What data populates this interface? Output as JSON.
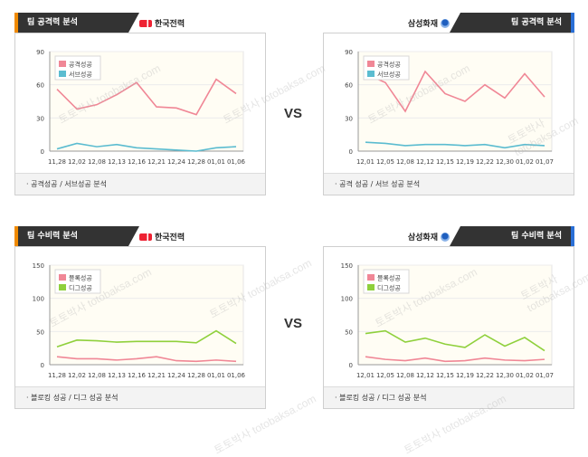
{
  "vs_label": "VS",
  "watermark": "토토박사 totobaksa.com",
  "colors": {
    "pink": "#f08796",
    "blue": "#5bbcd0",
    "green": "#8fd03c",
    "plot_bg": "#fffdf4"
  },
  "panels": [
    {
      "id": "p1",
      "side": "left",
      "tab": "팀 공격력 분석",
      "team": "한국전력",
      "logo": "kepco-logo",
      "footer": "· 공격성공 / 서브성공 분석",
      "chart_data": {
        "type": "line",
        "categories": [
          "11,28",
          "12,02",
          "12,08",
          "12,13",
          "12,16",
          "12,21",
          "12,24",
          "12,28",
          "01,01",
          "01,06"
        ],
        "ylim": [
          0,
          90
        ],
        "yticks": [
          0,
          30,
          60,
          90
        ],
        "series": [
          {
            "name": "공격성공",
            "color": "#f08796",
            "values": [
              56,
              38,
              42,
              51,
              62,
              40,
              39,
              33,
              65,
              52
            ]
          },
          {
            "name": "서브성공",
            "color": "#5bbcd0",
            "values": [
              2,
              7,
              4,
              6,
              3,
              2,
              1,
              0,
              3,
              4
            ]
          }
        ]
      }
    },
    {
      "id": "p2",
      "side": "right",
      "tab": "팀 공격력 분석",
      "team": "삼성화재",
      "logo": "samsung-logo",
      "footer": "· 공격 성공 / 서브 성공 분석",
      "chart_data": {
        "type": "line",
        "categories": [
          "12,01",
          "12,05",
          "12,08",
          "12,12",
          "12,15",
          "12,19",
          "12,22",
          "12,30",
          "01,02",
          "01,07"
        ],
        "ylim": [
          0,
          90
        ],
        "yticks": [
          0,
          30,
          60,
          90
        ],
        "series": [
          {
            "name": "공격성공",
            "color": "#f08796",
            "values": [
              70,
              62,
              36,
              72,
              52,
              45,
              60,
              48,
              70,
              49
            ]
          },
          {
            "name": "서브성공",
            "color": "#5bbcd0",
            "values": [
              8,
              7,
              5,
              6,
              6,
              5,
              6,
              3,
              6,
              5
            ]
          }
        ]
      }
    },
    {
      "id": "p3",
      "side": "left",
      "tab": "팀 수비력 분석",
      "team": "한국전력",
      "logo": "kepco-logo",
      "footer": "· 블로킹 성공 / 디그 성공 분석",
      "chart_data": {
        "type": "line",
        "categories": [
          "11,28",
          "12,02",
          "12,08",
          "12,13",
          "12,16",
          "12,21",
          "12,24",
          "12,28",
          "01,01",
          "01,06"
        ],
        "ylim": [
          0,
          150
        ],
        "yticks": [
          0,
          50,
          100,
          150
        ],
        "series": [
          {
            "name": "블록성공",
            "color": "#f08796",
            "values": [
              12,
              9,
              9,
              7,
              9,
              12,
              6,
              5,
              7,
              5
            ]
          },
          {
            "name": "디그성공",
            "color": "#8fd03c",
            "values": [
              27,
              37,
              36,
              34,
              35,
              35,
              35,
              33,
              51,
              32
            ]
          }
        ]
      }
    },
    {
      "id": "p4",
      "side": "right",
      "tab": "팀 수비력 분석",
      "team": "삼성화재",
      "logo": "samsung-logo",
      "footer": "· 블로킹 성공 / 디그 성공 분석",
      "chart_data": {
        "type": "line",
        "categories": [
          "12,01",
          "12,05",
          "12,08",
          "12,12",
          "12,15",
          "12,19",
          "12,22",
          "12,30",
          "01,02",
          "01,07"
        ],
        "ylim": [
          0,
          150
        ],
        "yticks": [
          0,
          50,
          100,
          150
        ],
        "series": [
          {
            "name": "블록성공",
            "color": "#f08796",
            "values": [
              12,
              8,
              6,
              10,
              5,
              6,
              10,
              7,
              6,
              8
            ]
          },
          {
            "name": "디그성공",
            "color": "#8fd03c",
            "values": [
              47,
              51,
              34,
              40,
              31,
              26,
              45,
              28,
              41,
              21
            ]
          }
        ]
      }
    }
  ]
}
